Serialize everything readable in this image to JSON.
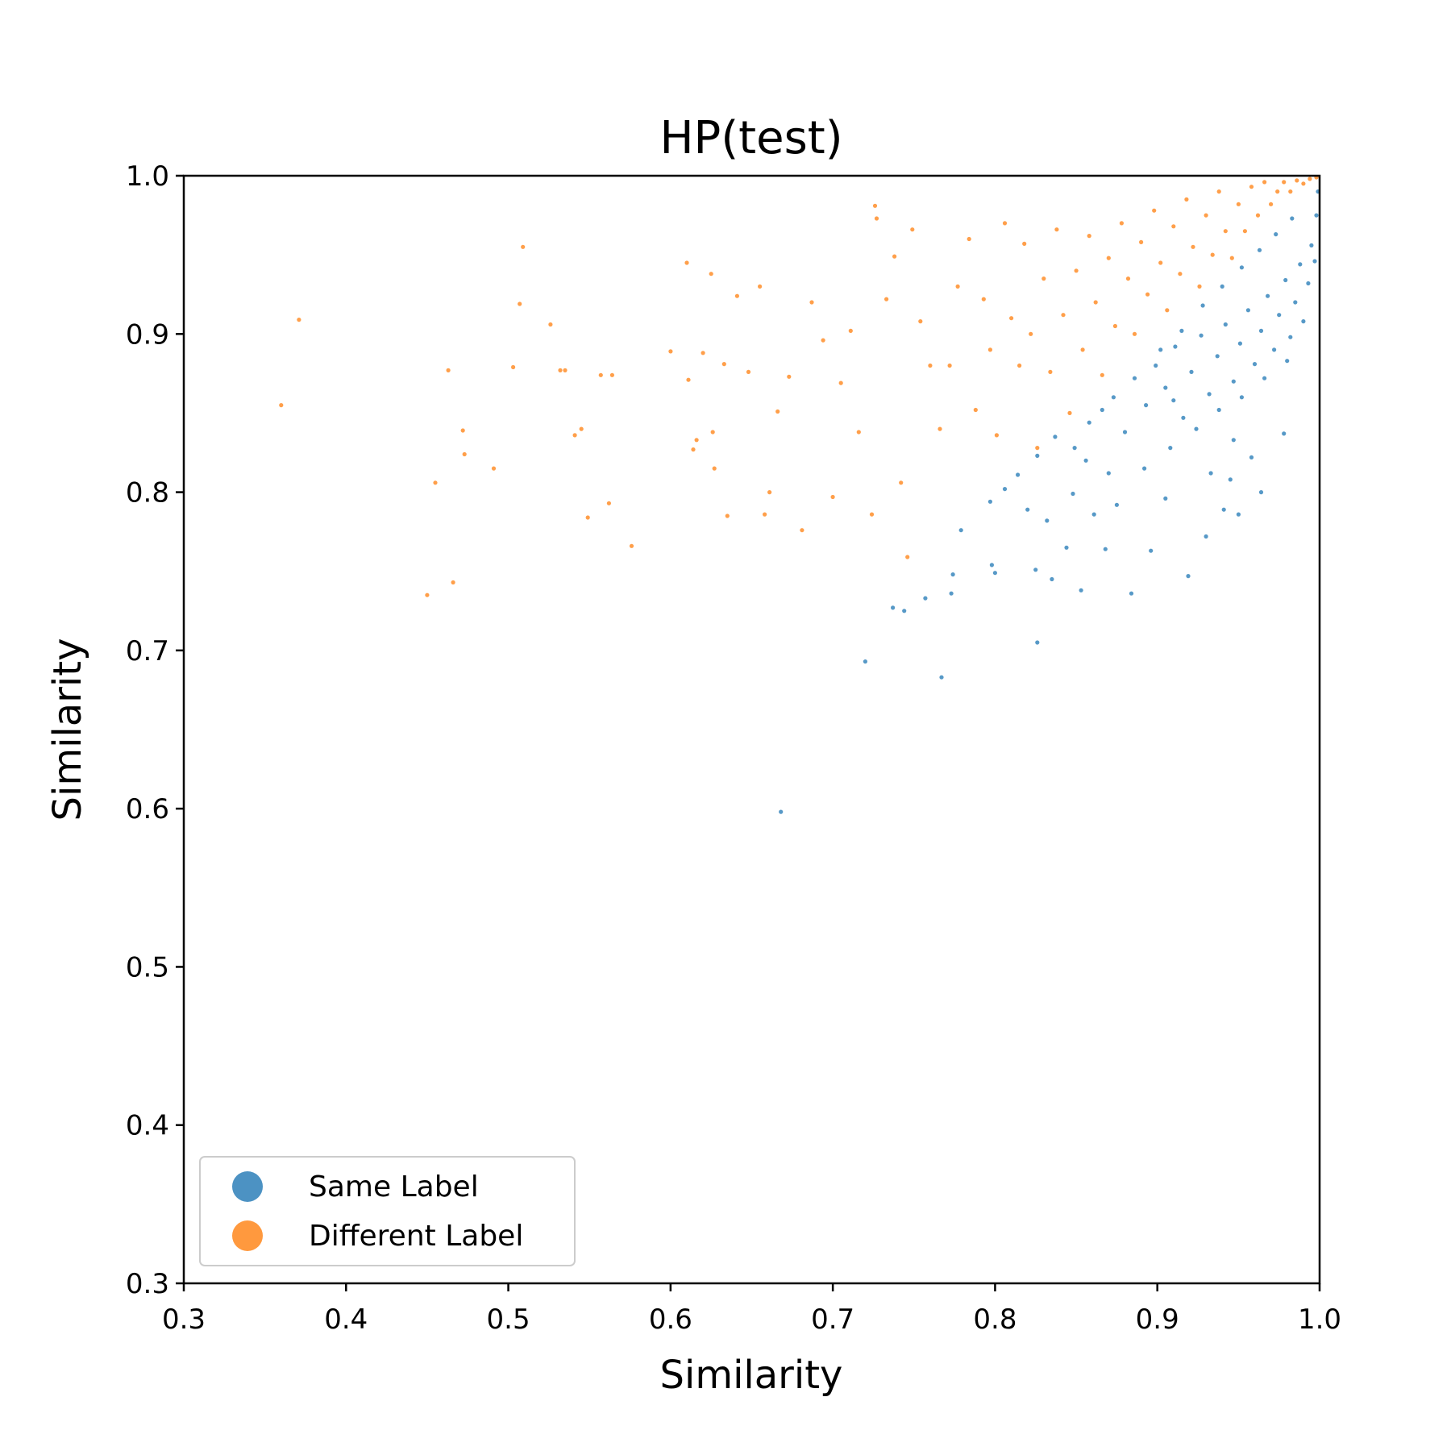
{
  "chart_data": {
    "type": "scatter",
    "title": "HP(test)",
    "xlabel": "Similarity",
    "ylabel": "Similarity",
    "xlim": [
      0.3,
      1.0
    ],
    "ylim": [
      0.3,
      1.0
    ],
    "xticks": [
      "0.3",
      "0.4",
      "0.5",
      "0.6",
      "0.7",
      "0.8",
      "0.9",
      "1.0"
    ],
    "yticks": [
      "0.3",
      "0.4",
      "0.5",
      "0.6",
      "0.7",
      "0.8",
      "0.9",
      "1.0"
    ],
    "grid": false,
    "legend_position": "lower-left",
    "series": [
      {
        "name": "Same Label",
        "color": "#1f77b4",
        "points": [
          [
            0.668,
            0.598
          ],
          [
            0.72,
            0.693
          ],
          [
            0.767,
            0.683
          ],
          [
            0.826,
            0.705
          ],
          [
            0.737,
            0.727
          ],
          [
            0.744,
            0.725
          ],
          [
            0.757,
            0.733
          ],
          [
            0.773,
            0.736
          ],
          [
            0.774,
            0.748
          ],
          [
            0.798,
            0.754
          ],
          [
            0.8,
            0.749
          ],
          [
            0.825,
            0.751
          ],
          [
            0.835,
            0.745
          ],
          [
            0.853,
            0.738
          ],
          [
            0.884,
            0.736
          ],
          [
            0.919,
            0.747
          ],
          [
            0.844,
            0.765
          ],
          [
            0.868,
            0.764
          ],
          [
            0.896,
            0.763
          ],
          [
            0.93,
            0.772
          ],
          [
            0.779,
            0.776
          ],
          [
            0.797,
            0.794
          ],
          [
            0.806,
            0.802
          ],
          [
            0.814,
            0.811
          ],
          [
            0.82,
            0.789
          ],
          [
            0.832,
            0.782
          ],
          [
            0.848,
            0.799
          ],
          [
            0.861,
            0.786
          ],
          [
            0.875,
            0.792
          ],
          [
            0.905,
            0.796
          ],
          [
            0.941,
            0.789
          ],
          [
            0.95,
            0.786
          ],
          [
            0.964,
            0.8
          ],
          [
            0.945,
            0.808
          ],
          [
            0.958,
            0.822
          ],
          [
            0.978,
            0.837
          ],
          [
            0.826,
            0.823
          ],
          [
            0.837,
            0.835
          ],
          [
            0.849,
            0.828
          ],
          [
            0.858,
            0.844
          ],
          [
            0.866,
            0.852
          ],
          [
            0.873,
            0.86
          ],
          [
            0.88,
            0.838
          ],
          [
            0.886,
            0.872
          ],
          [
            0.893,
            0.855
          ],
          [
            0.899,
            0.88
          ],
          [
            0.905,
            0.866
          ],
          [
            0.911,
            0.892
          ],
          [
            0.916,
            0.847
          ],
          [
            0.921,
            0.876
          ],
          [
            0.927,
            0.899
          ],
          [
            0.932,
            0.862
          ],
          [
            0.937,
            0.886
          ],
          [
            0.942,
            0.906
          ],
          [
            0.947,
            0.87
          ],
          [
            0.951,
            0.894
          ],
          [
            0.956,
            0.915
          ],
          [
            0.96,
            0.881
          ],
          [
            0.964,
            0.902
          ],
          [
            0.968,
            0.924
          ],
          [
            0.972,
            0.89
          ],
          [
            0.975,
            0.912
          ],
          [
            0.979,
            0.934
          ],
          [
            0.982,
            0.898
          ],
          [
            0.985,
            0.92
          ],
          [
            0.988,
            0.944
          ],
          [
            0.99,
            0.908
          ],
          [
            0.993,
            0.932
          ],
          [
            0.995,
            0.956
          ],
          [
            0.997,
            0.946
          ],
          [
            0.998,
            0.975
          ],
          [
            0.999,
            0.99
          ],
          [
            0.902,
            0.89
          ],
          [
            0.915,
            0.902
          ],
          [
            0.928,
            0.918
          ],
          [
            0.94,
            0.93
          ],
          [
            0.952,
            0.942
          ],
          [
            0.963,
            0.953
          ],
          [
            0.973,
            0.963
          ],
          [
            0.983,
            0.973
          ],
          [
            0.91,
            0.858
          ],
          [
            0.924,
            0.84
          ],
          [
            0.938,
            0.852
          ],
          [
            0.952,
            0.86
          ],
          [
            0.966,
            0.872
          ],
          [
            0.98,
            0.883
          ],
          [
            0.892,
            0.815
          ],
          [
            0.908,
            0.828
          ],
          [
            0.933,
            0.812
          ],
          [
            0.947,
            0.833
          ],
          [
            0.87,
            0.812
          ],
          [
            0.856,
            0.82
          ]
        ]
      },
      {
        "name": "Different Label",
        "color": "#ff7f0e",
        "points": [
          [
            0.36,
            0.855
          ],
          [
            0.371,
            0.909
          ],
          [
            0.45,
            0.735
          ],
          [
            0.455,
            0.806
          ],
          [
            0.463,
            0.877
          ],
          [
            0.466,
            0.743
          ],
          [
            0.472,
            0.839
          ],
          [
            0.473,
            0.824
          ],
          [
            0.491,
            0.815
          ],
          [
            0.503,
            0.879
          ],
          [
            0.507,
            0.919
          ],
          [
            0.509,
            0.955
          ],
          [
            0.526,
            0.906
          ],
          [
            0.532,
            0.877
          ],
          [
            0.535,
            0.877
          ],
          [
            0.541,
            0.836
          ],
          [
            0.545,
            0.84
          ],
          [
            0.549,
            0.784
          ],
          [
            0.557,
            0.874
          ],
          [
            0.562,
            0.793
          ],
          [
            0.564,
            0.874
          ],
          [
            0.576,
            0.766
          ],
          [
            0.6,
            0.889
          ],
          [
            0.61,
            0.945
          ],
          [
            0.611,
            0.871
          ],
          [
            0.614,
            0.827
          ],
          [
            0.616,
            0.833
          ],
          [
            0.62,
            0.888
          ],
          [
            0.625,
            0.938
          ],
          [
            0.626,
            0.838
          ],
          [
            0.627,
            0.815
          ],
          [
            0.633,
            0.881
          ],
          [
            0.635,
            0.785
          ],
          [
            0.641,
            0.924
          ],
          [
            0.648,
            0.876
          ],
          [
            0.655,
            0.93
          ],
          [
            0.658,
            0.786
          ],
          [
            0.661,
            0.8
          ],
          [
            0.666,
            0.851
          ],
          [
            0.673,
            0.873
          ],
          [
            0.681,
            0.776
          ],
          [
            0.687,
            0.92
          ],
          [
            0.694,
            0.896
          ],
          [
            0.7,
            0.797
          ],
          [
            0.705,
            0.869
          ],
          [
            0.711,
            0.902
          ],
          [
            0.716,
            0.838
          ],
          [
            0.724,
            0.786
          ],
          [
            0.726,
            0.981
          ],
          [
            0.727,
            0.973
          ],
          [
            0.733,
            0.922
          ],
          [
            0.738,
            0.949
          ],
          [
            0.742,
            0.806
          ],
          [
            0.746,
            0.759
          ],
          [
            0.749,
            0.966
          ],
          [
            0.754,
            0.908
          ],
          [
            0.76,
            0.88
          ],
          [
            0.766,
            0.84
          ],
          [
            0.772,
            0.88
          ],
          [
            0.777,
            0.93
          ],
          [
            0.784,
            0.96
          ],
          [
            0.788,
            0.852
          ],
          [
            0.793,
            0.922
          ],
          [
            0.797,
            0.89
          ],
          [
            0.801,
            0.836
          ],
          [
            0.806,
            0.97
          ],
          [
            0.81,
            0.91
          ],
          [
            0.815,
            0.88
          ],
          [
            0.818,
            0.957
          ],
          [
            0.822,
            0.9
          ],
          [
            0.826,
            0.828
          ],
          [
            0.83,
            0.935
          ],
          [
            0.834,
            0.876
          ],
          [
            0.838,
            0.966
          ],
          [
            0.842,
            0.912
          ],
          [
            0.846,
            0.85
          ],
          [
            0.85,
            0.94
          ],
          [
            0.854,
            0.89
          ],
          [
            0.858,
            0.962
          ],
          [
            0.862,
            0.92
          ],
          [
            0.866,
            0.874
          ],
          [
            0.87,
            0.948
          ],
          [
            0.874,
            0.905
          ],
          [
            0.878,
            0.97
          ],
          [
            0.882,
            0.935
          ],
          [
            0.886,
            0.9
          ],
          [
            0.89,
            0.958
          ],
          [
            0.894,
            0.925
          ],
          [
            0.898,
            0.978
          ],
          [
            0.902,
            0.945
          ],
          [
            0.906,
            0.915
          ],
          [
            0.91,
            0.968
          ],
          [
            0.914,
            0.938
          ],
          [
            0.918,
            0.985
          ],
          [
            0.922,
            0.955
          ],
          [
            0.926,
            0.93
          ],
          [
            0.93,
            0.975
          ],
          [
            0.934,
            0.95
          ],
          [
            0.938,
            0.99
          ],
          [
            0.942,
            0.965
          ],
          [
            0.946,
            0.948
          ],
          [
            0.95,
            0.982
          ],
          [
            0.954,
            0.965
          ],
          [
            0.958,
            0.993
          ],
          [
            0.962,
            0.975
          ],
          [
            0.966,
            0.996
          ],
          [
            0.97,
            0.982
          ],
          [
            0.974,
            0.99
          ],
          [
            0.978,
            0.996
          ],
          [
            0.982,
            0.99
          ],
          [
            0.986,
            0.997
          ],
          [
            0.99,
            0.995
          ],
          [
            0.994,
            0.998
          ],
          [
            0.998,
            0.999
          ]
        ]
      }
    ]
  }
}
